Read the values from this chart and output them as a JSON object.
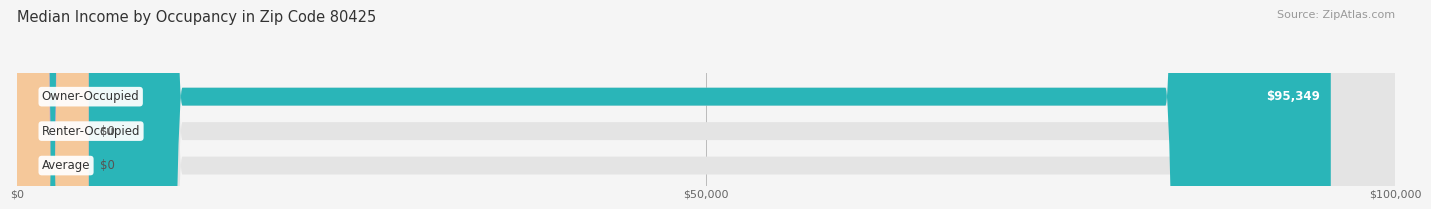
{
  "title": "Median Income by Occupancy in Zip Code 80425",
  "source": "Source: ZipAtlas.com",
  "categories": [
    "Owner-Occupied",
    "Renter-Occupied",
    "Average"
  ],
  "values": [
    95349,
    0,
    0
  ],
  "bar_colors": [
    "#2ab5b8",
    "#c4a8d4",
    "#f5c89a"
  ],
  "label_texts": [
    "$95,349",
    "$0",
    "$0"
  ],
  "xlim": [
    0,
    100000
  ],
  "xticks": [
    0,
    50000,
    100000
  ],
  "xticklabels": [
    "$0",
    "$50,000",
    "$100,000"
  ],
  "bar_bg_color": "#e4e4e4",
  "fig_bg_color": "#f5f5f5",
  "title_fontsize": 10.5,
  "source_fontsize": 8,
  "label_fontsize": 8.5,
  "tick_fontsize": 8
}
